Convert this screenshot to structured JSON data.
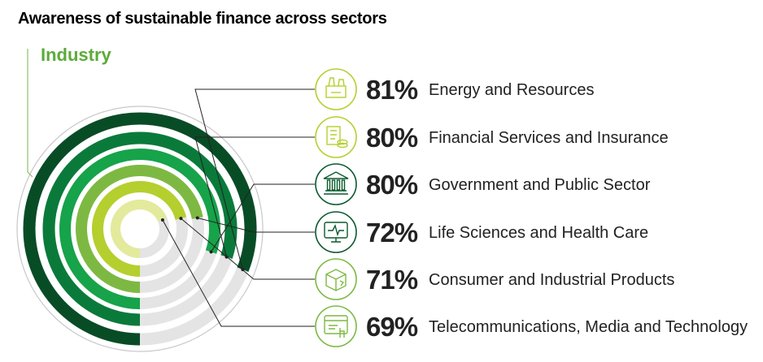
{
  "title": "Awareness of sustainable finance across sectors",
  "subtitle": "Industry",
  "chart_data": {
    "type": "radial bar",
    "title": "Awareness of sustainable finance across sectors",
    "subtitle": "Industry",
    "unit": "%",
    "series": [
      {
        "name": "Energy and Resources",
        "value": 81,
        "label": "81%",
        "color": "#084c26",
        "icon": "energy-plant-icon"
      },
      {
        "name": "Financial Services and Insurance",
        "value": 80,
        "label": "80%",
        "color": "#0a7a3a",
        "icon": "documents-coins-icon"
      },
      {
        "name": "Government and Public Sector",
        "value": 80,
        "label": "80%",
        "color": "#16a34a",
        "icon": "government-building-icon"
      },
      {
        "name": "Life Sciences and Health Care",
        "value": 72,
        "label": "72%",
        "color": "#7db942",
        "icon": "heart-monitor-icon"
      },
      {
        "name": "Consumer and Industrial Products",
        "value": 71,
        "label": "71%",
        "color": "#b5cf2e",
        "icon": "package-box-icon"
      },
      {
        "name": "Telecommunications, Media and Technology",
        "value": 69,
        "label": "69%",
        "color": "#e3ea9c",
        "icon": "web-browser-icon"
      }
    ],
    "track_color": "#e4e4e4",
    "icon_border_colors": [
      "#b5cf2e",
      "#b5cf2e",
      "#0a5a2e",
      "#0a5a2e",
      "#7db942",
      "#7db942"
    ]
  }
}
